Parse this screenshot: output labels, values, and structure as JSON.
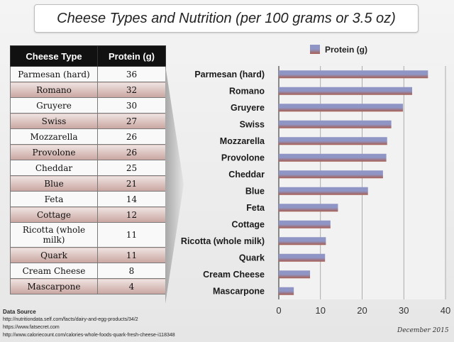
{
  "title": "Cheese Types and Nutrition (per 100 grams or 3.5 oz)",
  "table": {
    "headers": [
      "Cheese Type",
      "Protein (g)"
    ],
    "rows": [
      [
        "Parmesan (hard)",
        "36"
      ],
      [
        "Romano",
        "32"
      ],
      [
        "Gruyere",
        "30"
      ],
      [
        "Swiss",
        "27"
      ],
      [
        "Mozzarella",
        "26"
      ],
      [
        "Provolone",
        "26"
      ],
      [
        "Cheddar",
        "25"
      ],
      [
        "Blue",
        "21"
      ],
      [
        "Feta",
        "14"
      ],
      [
        "Cottage",
        "12"
      ],
      [
        "Ricotta (whole milk)",
        "11"
      ],
      [
        "Quark",
        "11"
      ],
      [
        "Cream Cheese",
        "8"
      ],
      [
        "Mascarpone",
        "4"
      ]
    ]
  },
  "chart_data": {
    "type": "bar",
    "orientation": "horizontal",
    "categories": [
      "Parmesan (hard)",
      "Romano",
      "Gruyere",
      "Swiss",
      "Mozzarella",
      "Provolone",
      "Cheddar",
      "Blue",
      "Feta",
      "Cottage",
      "Ricotta (whole milk)",
      "Quark",
      "Cream Cheese",
      "Mascarpone"
    ],
    "series": [
      {
        "name": "Protein (g)",
        "values": [
          35.8,
          32,
          29.8,
          27,
          26,
          25.8,
          25,
          21.4,
          14.2,
          12.4,
          11.3,
          11.1,
          7.5,
          3.6
        ]
      }
    ],
    "xlim": [
      0,
      40
    ],
    "xticks": [
      "0",
      "10",
      "20",
      "30",
      "40"
    ],
    "grid": true,
    "legend": "top",
    "colors": {
      "bar_top": "#8f95c4",
      "bar_bottom": "#a85e52"
    }
  },
  "footer": {
    "source_heading": "Data Source",
    "sources": [
      "http://nutritiondata.self.com/facts/dairy-and-egg-products/34/2",
      "https://www.fatsecret.com",
      "http://www.caloriecount.com/calories-whole-foods-quark-fresh-cheese-i118348"
    ],
    "date": "December 2015"
  }
}
